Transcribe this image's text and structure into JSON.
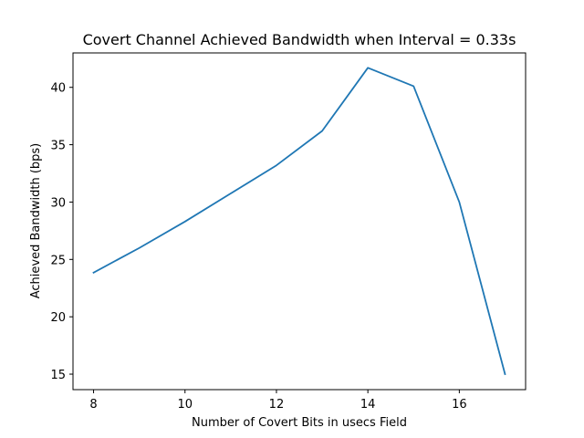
{
  "chart_data": {
    "type": "line",
    "title": "Covert Channel Achieved Bandwidth when Interval = 0.33s",
    "xlabel": "Number of Covert Bits in usecs Field",
    "ylabel": "Achieved Bandwidth (bps)",
    "x": [
      8,
      9,
      10,
      11,
      12,
      13,
      14,
      15,
      16,
      17
    ],
    "series": [
      {
        "values": [
          23.85,
          26.0,
          28.3,
          30.75,
          33.2,
          36.2,
          41.7,
          40.1,
          30.0,
          15.0
        ],
        "color": "#1f77b4"
      }
    ],
    "xlim": [
      7.55,
      17.45
    ],
    "ylim": [
      13.65,
      43.0
    ],
    "xticks": [
      8,
      10,
      12,
      14,
      16
    ],
    "yticks": [
      15,
      20,
      25,
      30,
      35,
      40
    ],
    "grid": false,
    "legend": "none"
  }
}
